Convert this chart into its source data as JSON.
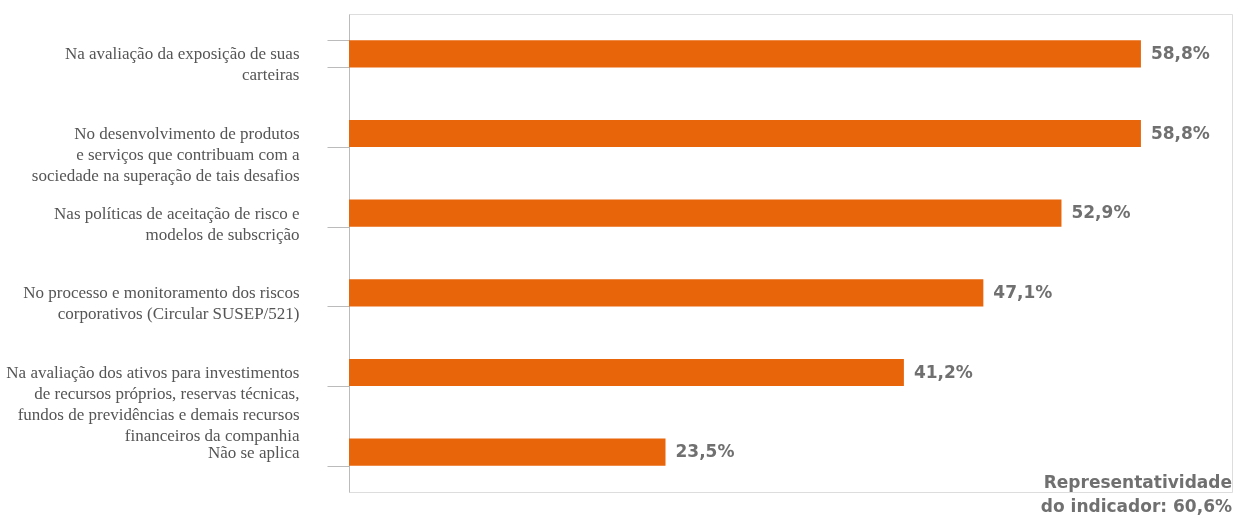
{
  "chart_data": {
    "type": "bar",
    "orientation": "horizontal",
    "categories": [
      "Na avaliação da exposição de suas\ncarteiras",
      "No desenvolvimento de produtos\ne serviços que contribuam com a\nsociedade na superação de tais desafios",
      "Nas políticas de aceitação de risco e\nmodelos de subscrição",
      "No processo e monitoramento dos riscos\ncorporativos (Circular SUSEP/521)",
      "Na avaliação dos ativos para investimentos\nde recursos próprios, reservas técnicas,\nfundos de previdências e demais recursos\nfinanceiros da companhia",
      "Não se aplica"
    ],
    "values": [
      58.8,
      58.8,
      52.9,
      47.1,
      41.2,
      23.5
    ],
    "value_labels": [
      "58,8%",
      "58,8%",
      "52,9%",
      "47,1%",
      "41,2%",
      "23,5%"
    ],
    "color": "#e8650a",
    "annotations": [
      "Representatividade\ndo indicador: 60,6%"
    ]
  }
}
